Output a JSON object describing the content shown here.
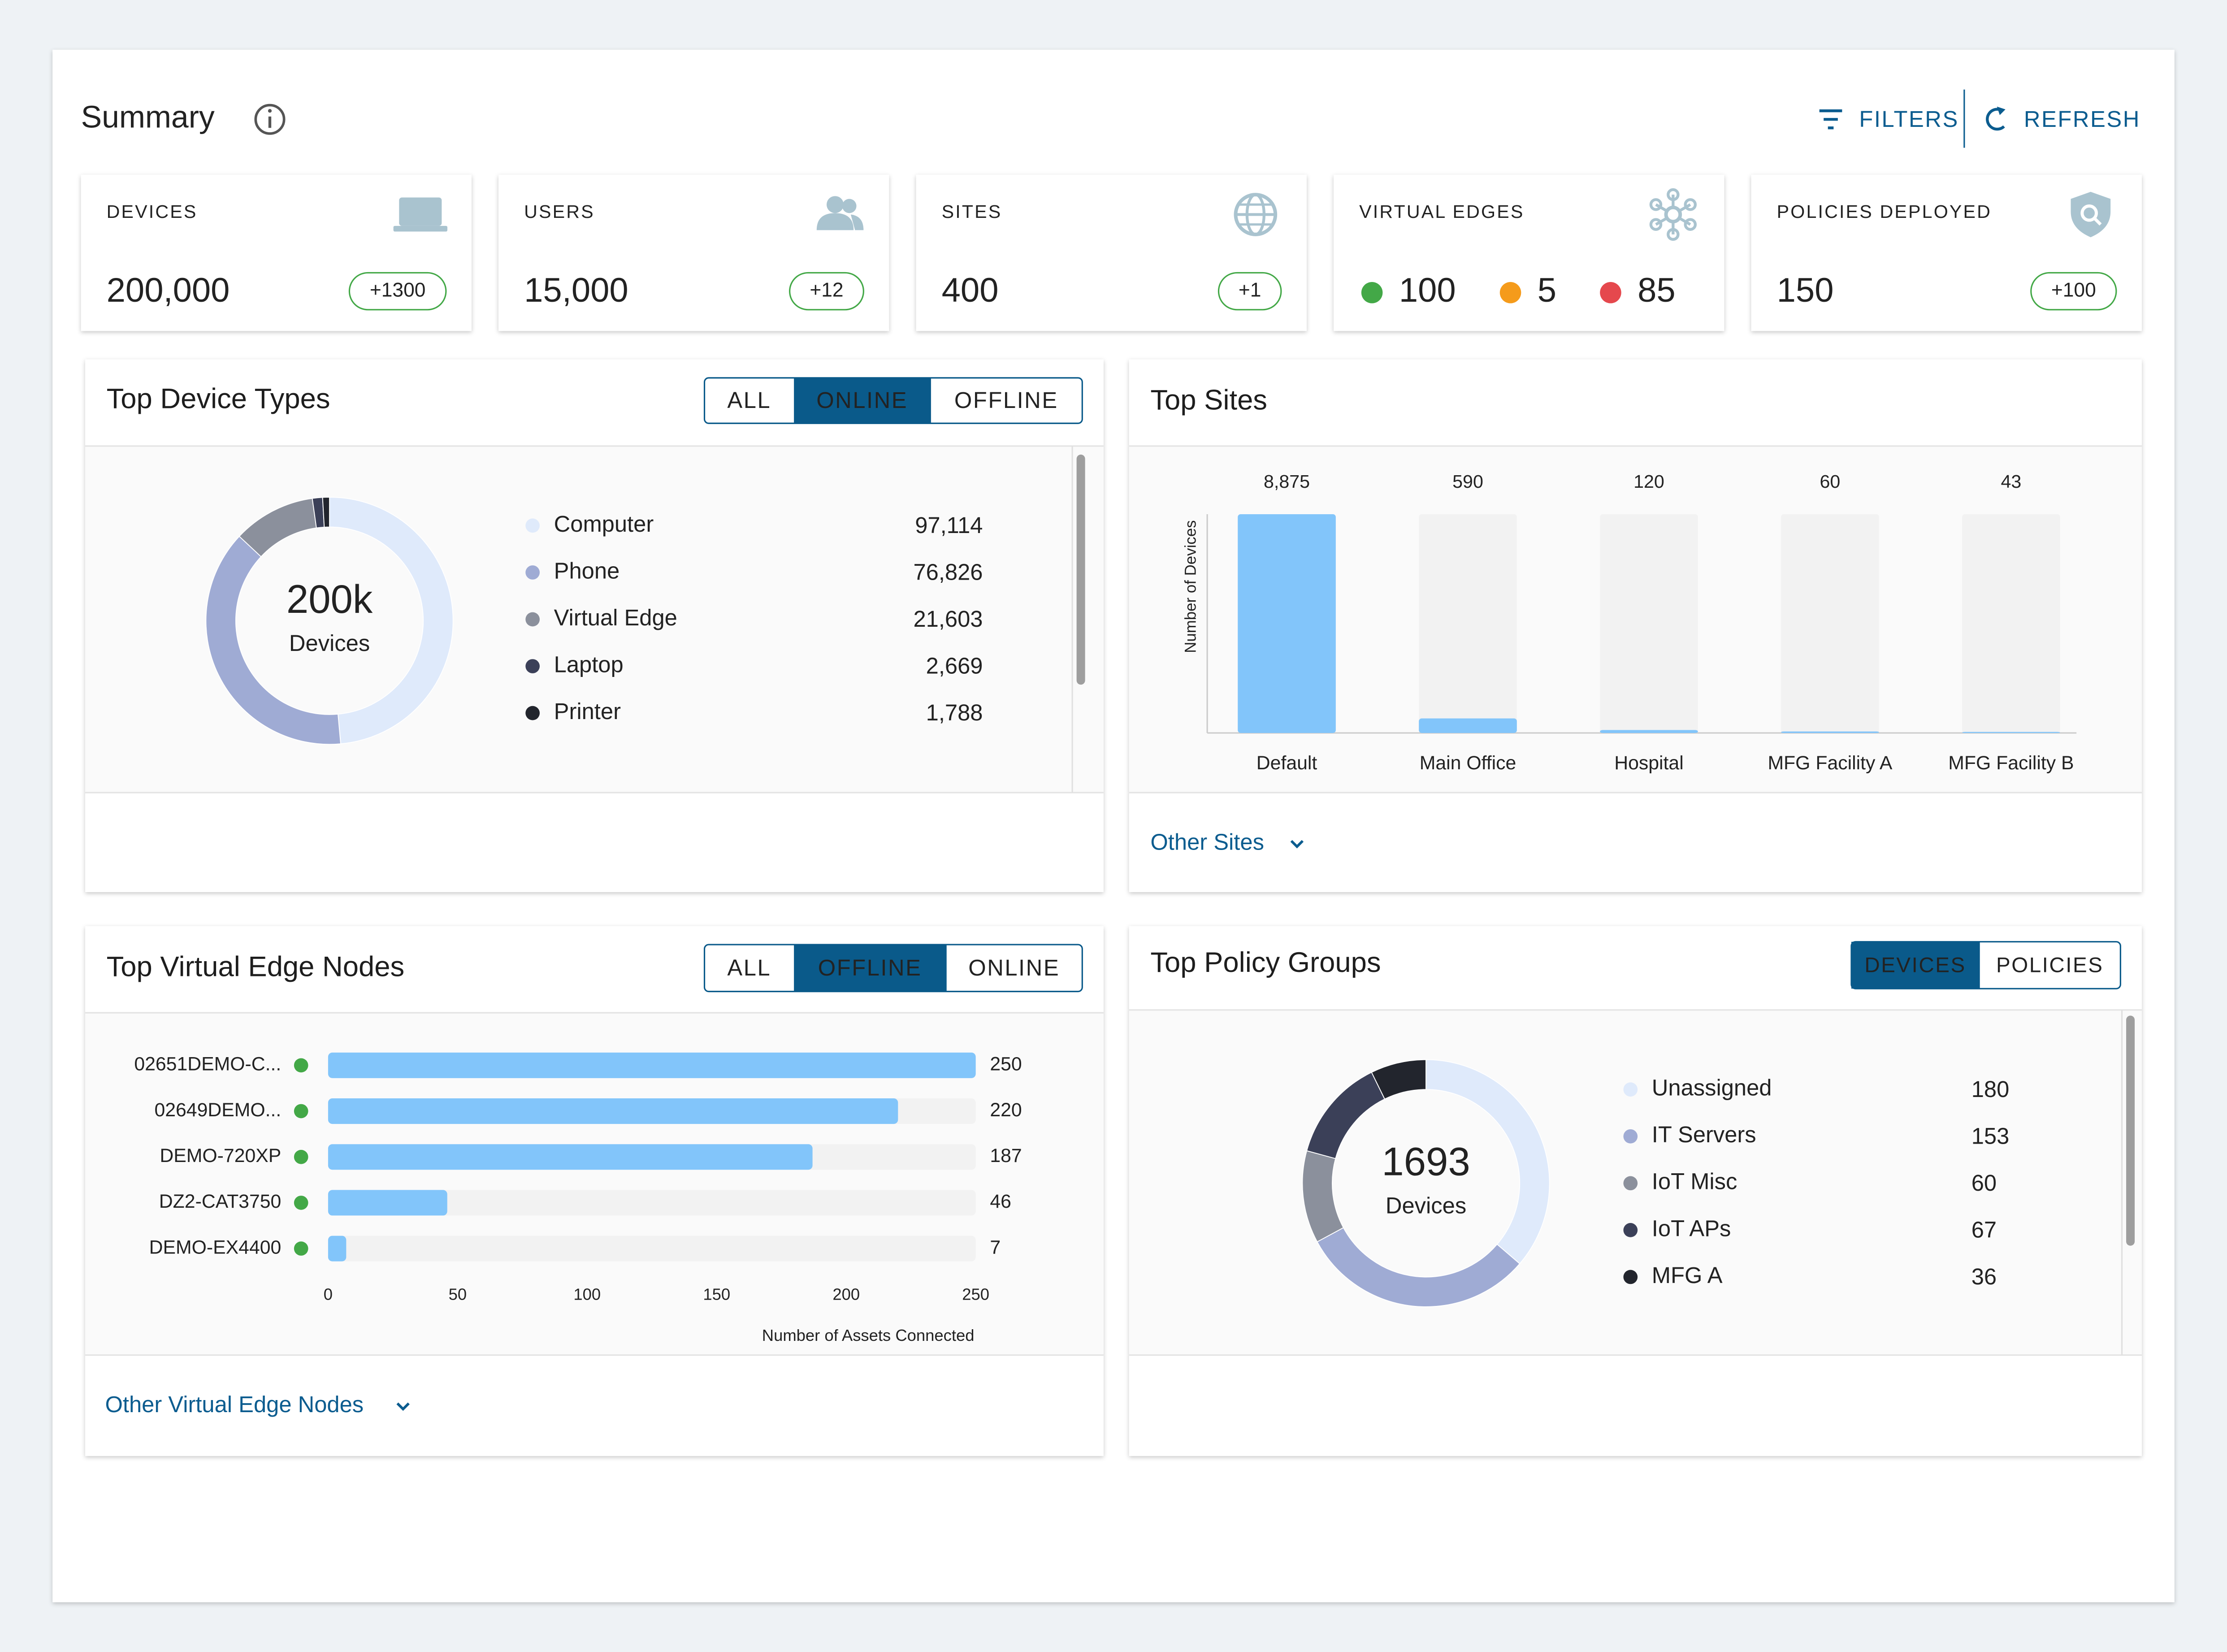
{
  "header": {
    "title": "Summary",
    "filters": "FILTERS",
    "refresh": "REFRESH"
  },
  "cards": [
    {
      "label": "DEVICES",
      "value": "200,000",
      "delta": "+1300"
    },
    {
      "label": "USERS",
      "value": "15,000",
      "delta": "+12"
    },
    {
      "label": "SITES",
      "value": "400",
      "delta": "+1"
    },
    {
      "label": "VIRTUAL EDGES",
      "statuses": [
        {
          "color": "#43a847",
          "value": 100
        },
        {
          "color": "#f59b1b",
          "value": 5
        },
        {
          "color": "#e5484d",
          "value": 85
        }
      ]
    },
    {
      "label": "POLICIES DEPLOYED",
      "value": "150",
      "delta": "+100"
    }
  ],
  "device_types": {
    "title": "Top Device Types",
    "tabs": [
      "ALL",
      "ONLINE",
      "OFFLINE"
    ],
    "active_tab": 1,
    "total": "200k",
    "total_label": "Devices",
    "items": [
      {
        "name": "Computer",
        "value": 97114,
        "value_label": "97,114",
        "color": "#dfeafb"
      },
      {
        "name": "Phone",
        "value": 76826,
        "value_label": "76,826",
        "color": "#9fabd4"
      },
      {
        "name": "Virtual Edge",
        "value": 21603,
        "value_label": "21,603",
        "color": "#8b909c"
      },
      {
        "name": "Laptop",
        "value": 2669,
        "value_label": "2,669",
        "color": "#3b4058"
      },
      {
        "name": "Printer",
        "value": 1788,
        "value_label": "1,788",
        "color": "#22252d"
      }
    ]
  },
  "top_sites": {
    "title": "Top Sites",
    "y_label": "Number of Devices",
    "categories": [
      "Default",
      "Main Office",
      "Hospital",
      "MFG Facility A",
      "MFG Facility B"
    ],
    "values": [
      8875,
      590,
      120,
      60,
      43
    ],
    "value_labels": [
      "8,875",
      "590",
      "120",
      "60",
      "43"
    ],
    "color": "#82c5fa",
    "more": "Other Sites"
  },
  "virtual_edge_nodes": {
    "title": "Top Virtual Edge Nodes",
    "tabs": [
      "ALL",
      "OFFLINE",
      "ONLINE"
    ],
    "active_tab": 1,
    "categories": [
      "02651DEMO-C...",
      "02649DEMO...",
      "DEMO-720XP",
      "DZ2-CAT3750",
      "DEMO-EX4400"
    ],
    "values": [
      250,
      220,
      187,
      46,
      7
    ],
    "xlim": [
      0,
      250
    ],
    "xticks": [
      0,
      50,
      100,
      150,
      200,
      250
    ],
    "x_label": "Number of Assets Connected",
    "color": "#82c5fa",
    "status_color": "#43a847",
    "more": "Other Virtual Edge Nodes"
  },
  "policy_groups": {
    "title": "Top Policy Groups",
    "tabs": [
      "DEVICES",
      "POLICIES"
    ],
    "active_tab": 0,
    "total": "1693",
    "total_label": "Devices",
    "items": [
      {
        "name": "Unassigned",
        "value": 180,
        "color": "#dfeafb"
      },
      {
        "name": "IT Servers",
        "value": 153,
        "color": "#9fabd4"
      },
      {
        "name": "IoT Misc",
        "value": 60,
        "color": "#8b909c"
      },
      {
        "name": "IoT APs",
        "value": 67,
        "color": "#3b4058"
      },
      {
        "name": "MFG A",
        "value": 36,
        "color": "#22252d"
      }
    ]
  }
}
